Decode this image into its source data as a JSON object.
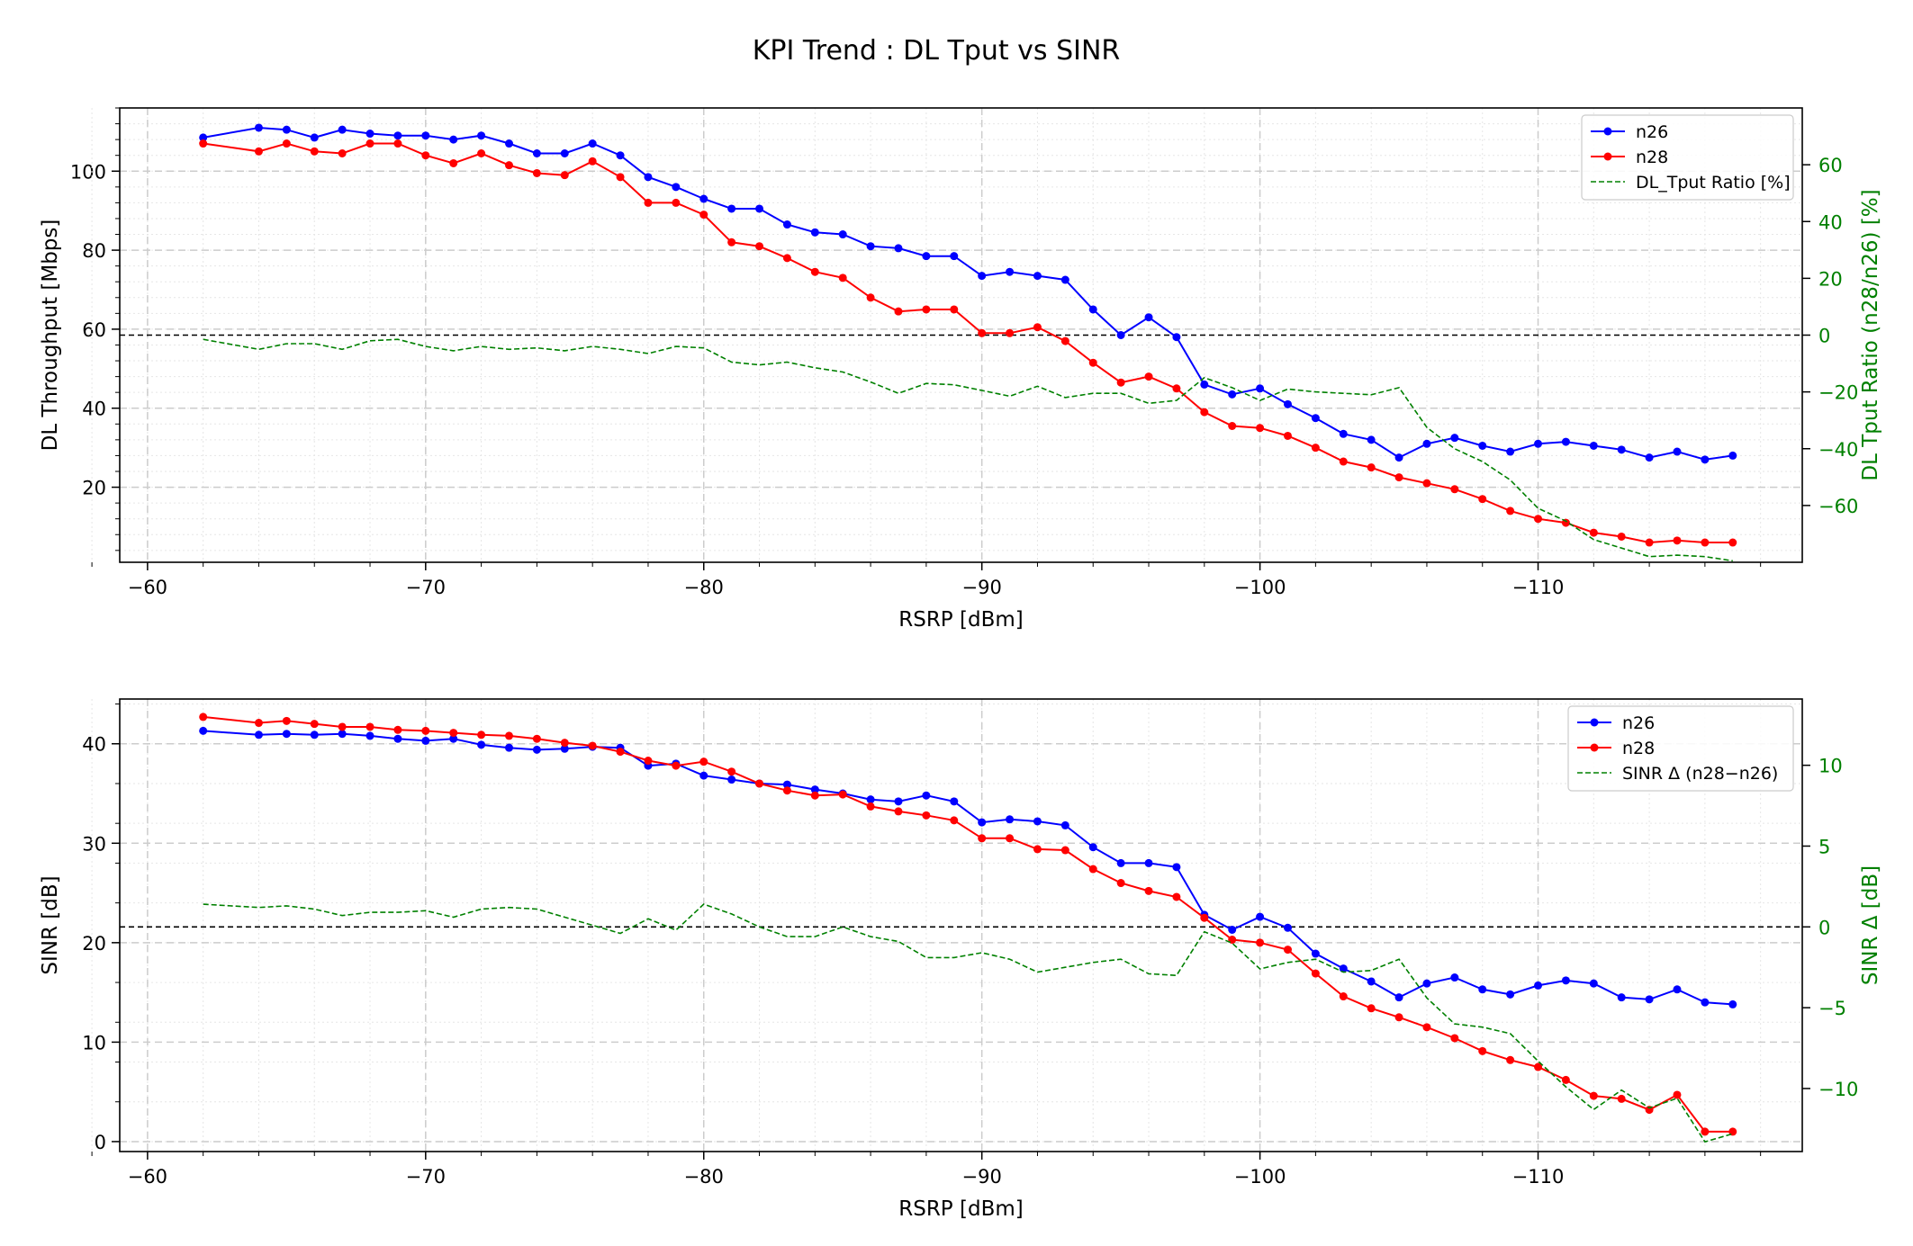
{
  "figure": {
    "title": "KPI Trend : DL Tput vs SINR"
  },
  "chart_data": [
    {
      "type": "line",
      "xlabel": "RSRP [dBm]",
      "ylabel": "DL Throughput [Mbps]",
      "y2label": "DL Tput Ratio (n28/n26) [%]",
      "x_inverted": true,
      "xlim": [
        -59,
        -119.5
      ],
      "ylim": [
        1,
        116
      ],
      "y2lim": [
        -80,
        80
      ],
      "xticks": [
        -60,
        -70,
        -80,
        -90,
        -100,
        -110
      ],
      "xticklabels": [
        "−60",
        "−70",
        "−80",
        "−90",
        "−100",
        "−110"
      ],
      "yticks": [
        20,
        40,
        60,
        80,
        100
      ],
      "y2ticks": [
        -60,
        -40,
        -20,
        0,
        20,
        40,
        60
      ],
      "y2ticklabels": [
        "−60",
        "−40",
        "−20",
        "0",
        "20",
        "40",
        "60"
      ],
      "reference_line_y2": 0,
      "grid": true,
      "legend_position": "upper right",
      "x": [
        -62,
        -64,
        -65,
        -66,
        -67,
        -68,
        -69,
        -70,
        -71,
        -72,
        -73,
        -74,
        -75,
        -76,
        -77,
        -78,
        -79,
        -80,
        -81,
        -82,
        -83,
        -84,
        -85,
        -86,
        -87,
        -88,
        -89,
        -90,
        -91,
        -92,
        -93,
        -94,
        -95,
        -96,
        -97,
        -98,
        -99,
        -100,
        -101,
        -102,
        -103,
        -104,
        -105,
        -106,
        -107,
        -108,
        -109,
        -110,
        -111,
        -112,
        -113,
        -114,
        -115,
        -116,
        -117
      ],
      "series": [
        {
          "name": "n26",
          "color": "#0000ff",
          "axis": "left",
          "style": "solid-marker",
          "values": [
            108.5,
            111,
            110.5,
            108.5,
            110.5,
            109.5,
            109,
            109,
            108,
            109,
            107,
            104.5,
            104.5,
            107,
            104,
            98.5,
            96,
            93,
            90.5,
            90.5,
            86.5,
            84.5,
            84,
            81,
            80.5,
            78.5,
            78.5,
            73.5,
            74.5,
            73.5,
            72.5,
            65,
            58.5,
            63,
            58,
            46,
            43.5,
            45,
            41,
            37.5,
            33.5,
            32,
            27.5,
            31,
            32.5,
            30.5,
            29,
            31,
            31.5,
            30.5,
            29.5,
            27.5,
            29,
            27,
            28
          ]
        },
        {
          "name": "n28",
          "color": "#ff0000",
          "axis": "left",
          "style": "solid-marker",
          "values": [
            107,
            105,
            107,
            105,
            104.5,
            107,
            107,
            104,
            102,
            104.5,
            101.5,
            99.5,
            99,
            102.5,
            98.5,
            92,
            92,
            89,
            82,
            81,
            78,
            74.5,
            73,
            68,
            64.5,
            65,
            65,
            59,
            59,
            60.5,
            57,
            51.5,
            46.5,
            48,
            45,
            39,
            35.5,
            35,
            33,
            30,
            26.5,
            25,
            22.5,
            21,
            19.5,
            17,
            14,
            12,
            11,
            8.5,
            7.5,
            6,
            6.5,
            6,
            6
          ]
        },
        {
          "name": "DL_Tput Ratio [%]",
          "color": "#008000",
          "axis": "right",
          "style": "dashed",
          "values": [
            -1.5,
            -5,
            -3,
            -3,
            -5,
            -2,
            -1.5,
            -4,
            -5.5,
            -4,
            -5,
            -4.5,
            -5.5,
            -4,
            -5,
            -6.5,
            -4,
            -4.5,
            -9.5,
            -10.5,
            -9.5,
            -11.5,
            -13,
            -16.5,
            -20.5,
            -17,
            -17.5,
            -19.5,
            -21.5,
            -18,
            -22,
            -20.5,
            -20.5,
            -24,
            -23,
            -15,
            -18.5,
            -23,
            -19,
            -20,
            -20.5,
            -21,
            -18.5,
            -32.5,
            -40,
            -44.5,
            -51,
            -61,
            -65.5,
            -72,
            -75,
            -78,
            -77.5,
            -78,
            -79.5
          ]
        }
      ]
    },
    {
      "type": "line",
      "xlabel": "RSRP [dBm]",
      "ylabel": "SINR [dB]",
      "y2label": "SINR Δ [dB]",
      "x_inverted": true,
      "xlim": [
        -59,
        -119.5
      ],
      "ylim": [
        -1,
        44.5
      ],
      "y2lim": [
        -13.9,
        14.1
      ],
      "xticks": [
        -60,
        -70,
        -80,
        -90,
        -100,
        -110
      ],
      "xticklabels": [
        "−60",
        "−70",
        "−80",
        "−90",
        "−100",
        "−110"
      ],
      "yticks": [
        0,
        10,
        20,
        30,
        40
      ],
      "y2ticks": [
        -10,
        -5,
        0,
        5,
        10
      ],
      "y2ticklabels": [
        "−10",
        "−5",
        "0",
        "5",
        "10"
      ],
      "reference_line_y2": 0,
      "grid": true,
      "legend_position": "upper right",
      "x": [
        -62,
        -64,
        -65,
        -66,
        -67,
        -68,
        -69,
        -70,
        -71,
        -72,
        -73,
        -74,
        -75,
        -76,
        -77,
        -78,
        -79,
        -80,
        -81,
        -82,
        -83,
        -84,
        -85,
        -86,
        -87,
        -88,
        -89,
        -90,
        -91,
        -92,
        -93,
        -94,
        -95,
        -96,
        -97,
        -98,
        -99,
        -100,
        -101,
        -102,
        -103,
        -104,
        -105,
        -106,
        -107,
        -108,
        -109,
        -110,
        -111,
        -112,
        -113,
        -114,
        -115,
        -116,
        -117
      ],
      "series": [
        {
          "name": "n26",
          "color": "#0000ff",
          "axis": "left",
          "style": "solid-marker",
          "values": [
            41.3,
            40.9,
            41,
            40.9,
            41,
            40.8,
            40.5,
            40.3,
            40.5,
            39.9,
            39.6,
            39.4,
            39.5,
            39.7,
            39.6,
            37.8,
            38,
            36.8,
            36.4,
            36,
            35.9,
            35.4,
            35,
            34.4,
            34.2,
            34.8,
            34.2,
            32.1,
            32.4,
            32.2,
            31.8,
            29.6,
            28,
            28,
            27.6,
            22.8,
            21.3,
            22.6,
            21.5,
            18.9,
            17.4,
            16.1,
            14.5,
            15.9,
            16.5,
            15.3,
            14.8,
            15.7,
            16.2,
            15.9,
            14.5,
            14.3,
            15.3,
            14,
            13.8
          ]
        },
        {
          "name": "n28",
          "color": "#ff0000",
          "axis": "left",
          "style": "solid-marker",
          "values": [
            42.7,
            42.1,
            42.3,
            42,
            41.7,
            41.7,
            41.4,
            41.3,
            41.1,
            40.9,
            40.8,
            40.5,
            40.1,
            39.8,
            39.2,
            38.3,
            37.8,
            38.2,
            37.2,
            36,
            35.3,
            34.8,
            34.9,
            33.7,
            33.2,
            32.8,
            32.3,
            30.5,
            30.5,
            29.4,
            29.3,
            27.4,
            26,
            25.2,
            24.6,
            22.5,
            20.3,
            20,
            19.3,
            16.9,
            14.6,
            13.4,
            12.5,
            11.5,
            10.4,
            9.1,
            8.2,
            7.5,
            6.2,
            4.6,
            4.3,
            3.2,
            4.7,
            1,
            1
          ]
        },
        {
          "name": "SINR Δ (n28−n26)",
          "color": "#008000",
          "axis": "right",
          "style": "dashed",
          "values": [
            1.4,
            1.2,
            1.3,
            1.1,
            0.7,
            0.9,
            0.9,
            1,
            0.6,
            1.1,
            1.2,
            1.1,
            0.6,
            0.1,
            -0.4,
            0.5,
            -0.2,
            1.4,
            0.8,
            0,
            -0.6,
            -0.6,
            0,
            -0.6,
            -0.9,
            -1.9,
            -1.9,
            -1.6,
            -2,
            -2.8,
            -2.5,
            -2.2,
            -2,
            -2.9,
            -3,
            -0.3,
            -1,
            -2.6,
            -2.2,
            -2,
            -2.8,
            -2.7,
            -2,
            -4.4,
            -6,
            -6.2,
            -6.6,
            -8.3,
            -9.9,
            -11.3,
            -10.1,
            -11.2,
            -10.6,
            -13.3,
            -12.8
          ]
        }
      ]
    }
  ]
}
